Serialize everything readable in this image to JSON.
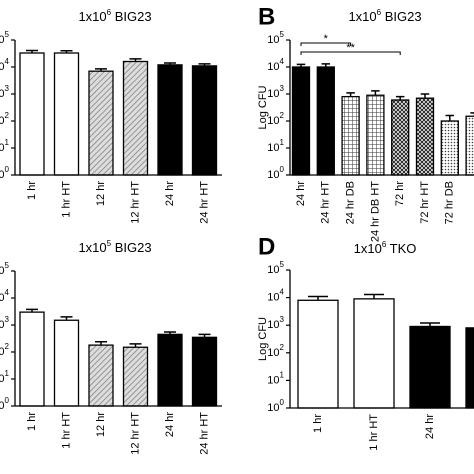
{
  "chart_data": [
    {
      "type": "bar",
      "title": [
        "1x10",
        "6",
        " BIG23"
      ],
      "log_scale": true,
      "categories": [
        "1 hr",
        "1 hr HT",
        "12 hr",
        "12 hr HT",
        "24 hr",
        "24 hr HT"
      ],
      "values": [
        33000,
        33000,
        7000,
        16000,
        12000,
        11000
      ],
      "errors": [
        8000,
        7000,
        1500,
        4000,
        2000,
        2000
      ],
      "fills": [
        "white",
        "white",
        "hatch",
        "hatch",
        "black",
        "black"
      ],
      "ylim": [
        1,
        100000
      ],
      "yticks": [
        {
          "value": 1,
          "label": "10",
          "exp": "0"
        },
        {
          "value": 10,
          "label": "10",
          "exp": "1"
        },
        {
          "value": 100,
          "label": "10",
          "exp": "2"
        },
        {
          "value": 1000,
          "label": "10",
          "exp": "3"
        },
        {
          "value": 10000,
          "label": "10",
          "exp": "4"
        },
        {
          "value": 100000,
          "label": "10",
          "exp": "5"
        }
      ]
    },
    {
      "type": "bar",
      "panel_label": "B",
      "title": [
        "1x10",
        "6",
        " BIG23"
      ],
      "ylabel": "Log CFU",
      "log_scale": true,
      "categories": [
        "24 hr",
        "24 hr HT",
        "24 hr DB",
        "24 hr DB HT",
        "72 hr",
        "72 hr HT",
        "72 hr DB",
        null
      ],
      "values": [
        10000,
        10000,
        800,
        900,
        600,
        700,
        100,
        150
      ],
      "errors": [
        2500,
        3000,
        300,
        400,
        200,
        300,
        60,
        50
      ],
      "fills": [
        "black",
        "black",
        "grid",
        "grid",
        "xhatch",
        "xhatch",
        "dots",
        "dots"
      ],
      "annotations": [
        "*",
        "**"
      ],
      "ylim": [
        1,
        100000
      ],
      "yticks": [
        {
          "value": 1,
          "label": "10",
          "exp": "0"
        },
        {
          "value": 10,
          "label": "10",
          "exp": "1"
        },
        {
          "value": 100,
          "label": "10",
          "exp": "2"
        },
        {
          "value": 1000,
          "label": "10",
          "exp": "3"
        },
        {
          "value": 10000,
          "label": "10",
          "exp": "4"
        },
        {
          "value": 100000,
          "label": "10",
          "exp": "5"
        }
      ]
    },
    {
      "type": "bar",
      "title": [
        "1x10",
        "5",
        " BIG23"
      ],
      "log_scale": true,
      "categories": [
        "1 hr",
        "1 hr HT",
        "12 hr",
        "12 hr HT",
        "24 hr",
        "24 hr HT"
      ],
      "values": [
        3000,
        1500,
        180,
        150,
        450,
        350
      ],
      "errors": [
        800,
        500,
        60,
        50,
        100,
        100
      ],
      "fills": [
        "white",
        "white",
        "hatch",
        "hatch",
        "black",
        "black"
      ],
      "ylim": [
        1,
        100000
      ],
      "yticks": [
        {
          "value": 1,
          "label": "10",
          "exp": "0"
        },
        {
          "value": 10,
          "label": "10",
          "exp": "1"
        },
        {
          "value": 100,
          "label": "10",
          "exp": "2"
        },
        {
          "value": 1000,
          "label": "10",
          "exp": "3"
        },
        {
          "value": 10000,
          "label": "10",
          "exp": "4"
        },
        {
          "value": 100000,
          "label": "10",
          "exp": "5"
        }
      ]
    },
    {
      "type": "bar",
      "panel_label": "D",
      "title": [
        "1x10",
        "6",
        " TKO"
      ],
      "ylabel": "Log CFU",
      "log_scale": true,
      "categories": [
        "1 hr",
        "1 hr HT",
        "24 hr",
        null
      ],
      "values": [
        8000,
        9000,
        900,
        800
      ],
      "errors": [
        3000,
        4000,
        300,
        200
      ],
      "fills": [
        "white",
        "white",
        "black",
        "black"
      ],
      "ylim": [
        1,
        100000
      ],
      "yticks": [
        {
          "value": 1,
          "label": "10",
          "exp": "0"
        },
        {
          "value": 10,
          "label": "10",
          "exp": "1"
        },
        {
          "value": 100,
          "label": "10",
          "exp": "2"
        },
        {
          "value": 1000,
          "label": "10",
          "exp": "3"
        },
        {
          "value": 10000,
          "label": "10",
          "exp": "4"
        },
        {
          "value": 100000,
          "label": "10",
          "exp": "5"
        }
      ]
    }
  ]
}
